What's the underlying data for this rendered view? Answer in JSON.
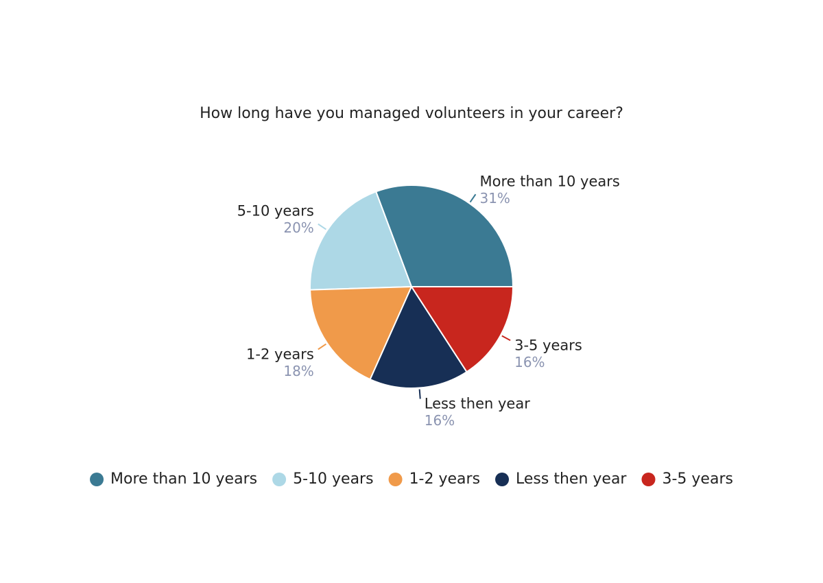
{
  "chart_data": {
    "type": "pie",
    "title": "How long have you managed volunteers in your career?",
    "categories": [
      "More than 10 years",
      "5-10 years",
      "1-2 years",
      "Less then year",
      "3-5 years"
    ],
    "values": [
      31,
      20,
      18,
      16,
      16
    ],
    "value_labels": [
      "31%",
      "20%",
      "18%",
      "16%",
      "16%"
    ],
    "colors": [
      "#3b7a93",
      "#add8e6",
      "#f09a4a",
      "#172f55",
      "#c8261e"
    ],
    "legend": "bottom"
  }
}
